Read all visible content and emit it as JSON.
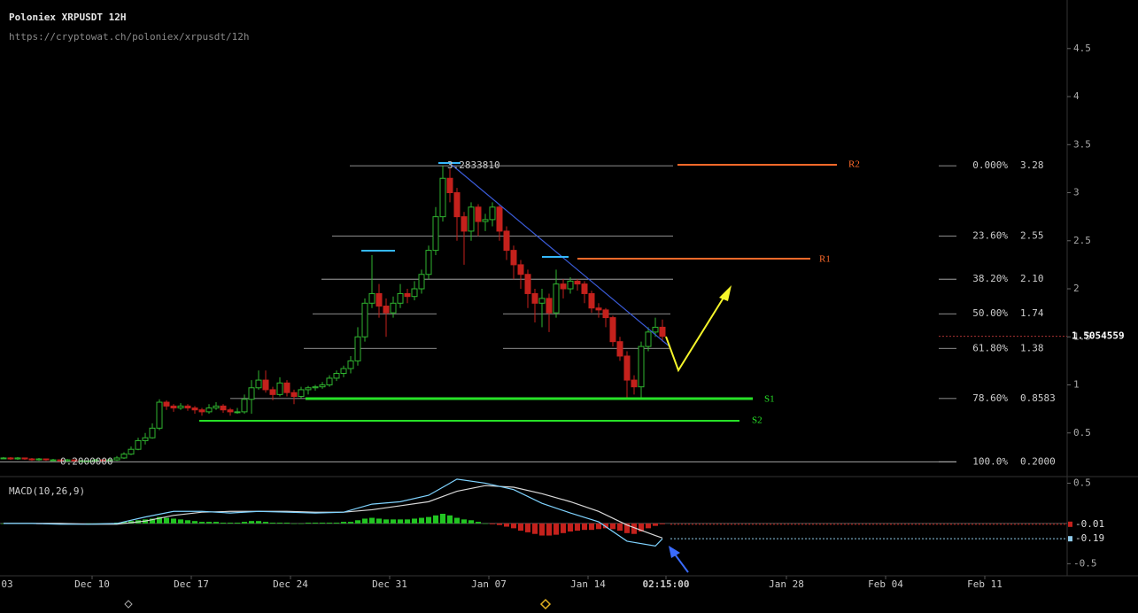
{
  "header": {
    "title": "Poloniex XRPUSDT 12H",
    "url": "https://cryptowat.ch/poloniex/xrpusdt/12h"
  },
  "annotations": {
    "r1": "R1",
    "r2": "R2",
    "s1": "S1",
    "s2": "S2"
  },
  "chart_data": [
    {
      "type": "candlestick",
      "ylim": [
        0,
        5.005
      ],
      "yticks": [
        0.5,
        1,
        1.5,
        2,
        2.5,
        3,
        3.5,
        4,
        4.5
      ],
      "xlim": [
        0.5,
        75.8125
      ],
      "xticks": [
        {
          "value": 0,
          "label": "03"
        },
        {
          "value": 7,
          "label": "Dec 10"
        },
        {
          "value": 14,
          "label": "Dec 17"
        },
        {
          "value": 21,
          "label": "Dec 24"
        },
        {
          "value": 28,
          "label": "Dec 31"
        },
        {
          "value": 35,
          "label": "Jan 07"
        },
        {
          "value": 42,
          "label": "Jan 14"
        },
        {
          "value": 47.5,
          "label": "02:15:00"
        },
        {
          "value": 56,
          "label": "Jan 28"
        },
        {
          "value": 63,
          "label": "Feb 04"
        },
        {
          "value": 70,
          "label": "Feb 11"
        }
      ],
      "up_color": "#2fb52f",
      "down_color": "#c4211c",
      "current_price": 1.5054559,
      "extremes": [
        {
          "value": 3.283381,
          "label": "3.2833810"
        },
        {
          "value": 0.2,
          "label": "0.2000000"
        }
      ],
      "fib": [
        {
          "percent": "0.000%",
          "price": 3.28
        },
        {
          "percent": "23.60%",
          "price": 2.55
        },
        {
          "percent": "38.20%",
          "price": {
            "value": 2.1,
            "label": "2.10"
          }
        },
        {
          "percent": "50.00%",
          "price": 1.74
        },
        {
          "percent": "61.80%",
          "price": 1.38
        },
        {
          "percent": "78.60%",
          "price": 0.8583
        },
        {
          "percent": "100.0%",
          "price": {
            "value": 0.2,
            "label": "0.2000"
          }
        }
      ],
      "candles": [
        [
          0.24,
          0.25,
          0.23,
          0.24
        ],
        [
          0.24,
          0.25,
          0.22,
          0.23
        ],
        [
          0.23,
          0.25,
          0.22,
          0.24
        ],
        [
          0.24,
          0.24,
          0.22,
          0.23
        ],
        [
          0.23,
          0.24,
          0.21,
          0.22
        ],
        [
          0.22,
          0.24,
          0.21,
          0.23
        ],
        [
          0.23,
          0.23,
          0.21,
          0.22
        ],
        [
          0.22,
          0.23,
          0.21,
          0.22
        ],
        [
          0.22,
          0.22,
          0.2,
          0.21
        ],
        [
          0.21,
          0.23,
          0.2,
          0.22
        ],
        [
          0.22,
          0.22,
          0.2,
          0.21
        ],
        [
          0.21,
          0.22,
          0.2,
          0.21
        ],
        [
          0.21,
          0.22,
          0.2,
          0.21
        ],
        [
          0.21,
          0.23,
          0.2,
          0.22
        ],
        [
          0.22,
          0.22,
          0.2,
          0.21
        ],
        [
          0.21,
          0.23,
          0.21,
          0.22
        ],
        [
          0.22,
          0.26,
          0.21,
          0.24
        ],
        [
          0.24,
          0.3,
          0.23,
          0.28
        ],
        [
          0.28,
          0.36,
          0.27,
          0.33
        ],
        [
          0.33,
          0.45,
          0.32,
          0.42
        ],
        [
          0.42,
          0.5,
          0.38,
          0.45
        ],
        [
          0.45,
          0.6,
          0.44,
          0.55
        ],
        [
          0.55,
          0.85,
          0.53,
          0.82
        ],
        [
          0.82,
          0.84,
          0.74,
          0.78
        ],
        [
          0.78,
          0.8,
          0.72,
          0.76
        ],
        [
          0.76,
          0.81,
          0.74,
          0.78
        ],
        [
          0.78,
          0.8,
          0.73,
          0.76
        ],
        [
          0.76,
          0.78,
          0.7,
          0.74
        ],
        [
          0.74,
          0.76,
          0.68,
          0.72
        ],
        [
          0.72,
          0.8,
          0.7,
          0.76
        ],
        [
          0.76,
          0.82,
          0.74,
          0.78
        ],
        [
          0.78,
          0.8,
          0.71,
          0.74
        ],
        [
          0.74,
          0.76,
          0.68,
          0.72
        ],
        [
          0.72,
          0.76,
          0.7,
          0.72
        ],
        [
          0.72,
          0.9,
          0.7,
          0.85
        ],
        [
          0.85,
          1.05,
          0.7,
          0.97
        ],
        [
          0.97,
          1.15,
          0.95,
          1.05
        ],
        [
          1.05,
          1.15,
          0.92,
          0.95
        ],
        [
          0.95,
          0.98,
          0.84,
          0.9
        ],
        [
          0.9,
          1.08,
          0.88,
          1.02
        ],
        [
          1.02,
          1.05,
          0.88,
          0.92
        ],
        [
          0.92,
          0.95,
          0.8,
          0.88
        ],
        [
          0.88,
          0.98,
          0.86,
          0.95
        ],
        [
          0.95,
          0.99,
          0.9,
          0.97
        ],
        [
          0.97,
          1.0,
          0.94,
          0.98
        ],
        [
          0.98,
          1.03,
          0.96,
          1.0
        ],
        [
          1.0,
          1.1,
          0.98,
          1.07
        ],
        [
          1.07,
          1.15,
          1.04,
          1.12
        ],
        [
          1.12,
          1.2,
          1.08,
          1.17
        ],
        [
          1.17,
          1.3,
          1.12,
          1.25
        ],
        [
          1.25,
          1.6,
          1.2,
          1.5
        ],
        [
          1.5,
          1.9,
          1.45,
          1.85
        ],
        [
          1.85,
          2.35,
          1.8,
          1.95
        ],
        [
          1.95,
          2.05,
          1.7,
          1.82
        ],
        [
          1.82,
          1.9,
          1.5,
          1.75
        ],
        [
          1.75,
          1.92,
          1.7,
          1.85
        ],
        [
          1.85,
          2.05,
          1.8,
          1.95
        ],
        [
          1.95,
          2.0,
          1.85,
          1.92
        ],
        [
          1.92,
          2.08,
          1.88,
          2.0
        ],
        [
          2.0,
          2.2,
          1.95,
          2.15
        ],
        [
          2.15,
          2.45,
          2.1,
          2.4
        ],
        [
          2.4,
          2.85,
          2.35,
          2.75
        ],
        [
          2.75,
          3.28,
          2.7,
          3.15
        ],
        [
          3.15,
          3.25,
          2.9,
          3.0
        ],
        [
          3.0,
          3.05,
          2.5,
          2.75
        ],
        [
          2.75,
          2.8,
          2.25,
          2.6
        ],
        [
          2.6,
          2.9,
          2.5,
          2.85
        ],
        [
          2.85,
          2.88,
          2.55,
          2.7
        ],
        [
          2.7,
          2.78,
          2.6,
          2.72
        ],
        [
          2.72,
          2.9,
          2.65,
          2.85
        ],
        [
          2.85,
          2.88,
          2.5,
          2.6
        ],
        [
          2.6,
          2.65,
          2.3,
          2.4
        ],
        [
          2.4,
          2.45,
          2.1,
          2.25
        ],
        [
          2.25,
          2.3,
          2.0,
          2.15
        ],
        [
          2.15,
          2.2,
          1.8,
          1.95
        ],
        [
          1.95,
          2.0,
          1.65,
          1.85
        ],
        [
          1.85,
          2.0,
          1.6,
          1.9
        ],
        [
          1.9,
          1.95,
          1.55,
          1.75
        ],
        [
          1.75,
          2.2,
          1.7,
          2.05
        ],
        [
          2.05,
          2.1,
          1.9,
          2.0
        ],
        [
          2.0,
          2.12,
          1.95,
          2.08
        ],
        [
          2.08,
          2.1,
          1.98,
          2.05
        ],
        [
          2.05,
          2.08,
          1.85,
          1.95
        ],
        [
          1.95,
          1.98,
          1.75,
          1.8
        ],
        [
          1.8,
          1.85,
          1.7,
          1.78
        ],
        [
          1.78,
          1.8,
          1.6,
          1.7
        ],
        [
          1.7,
          1.72,
          1.4,
          1.45
        ],
        [
          1.45,
          1.5,
          1.25,
          1.3
        ],
        [
          1.3,
          1.35,
          0.86,
          1.05
        ],
        [
          1.05,
          1.1,
          0.9,
          0.98
        ],
        [
          0.98,
          1.45,
          0.86,
          1.4
        ],
        [
          1.4,
          1.6,
          1.35,
          1.55
        ],
        [
          1.55,
          1.7,
          1.5,
          1.6
        ],
        [
          1.6,
          1.68,
          1.45,
          1.5054559
        ]
      ]
    },
    {
      "type": "macd",
      "title": "MACD(10,26,9)",
      "ylim": [
        -0.65,
        0.56
      ],
      "yticks": [
        0.5,
        -0.5
      ],
      "markers": [
        -0.01,
        -0.19
      ],
      "x": [
        0,
        4,
        8,
        12,
        16,
        20,
        24,
        28,
        32,
        36,
        40,
        44,
        48,
        52,
        56,
        60,
        64,
        68,
        72,
        76,
        80,
        84,
        88,
        92,
        93
      ],
      "macd": {
        "color": "#7fd3ff",
        "values": [
          0,
          0,
          -0.01,
          -0.01,
          0,
          0.08,
          0.15,
          0.15,
          0.13,
          0.15,
          0.14,
          0.13,
          0.14,
          0.24,
          0.27,
          0.35,
          0.55,
          0.5,
          0.42,
          0.25,
          0.13,
          0.02,
          -0.22,
          -0.28,
          -0.19
        ]
      },
      "signal": {
        "color": "#d8d8d8",
        "values": [
          0,
          0,
          0,
          -0.01,
          -0.01,
          0.03,
          0.1,
          0.14,
          0.15,
          0.15,
          0.15,
          0.14,
          0.14,
          0.17,
          0.22,
          0.27,
          0.4,
          0.47,
          0.45,
          0.37,
          0.27,
          0.15,
          -0.02,
          -0.15,
          -0.18
        ]
      },
      "histogram": [
        0,
        0,
        0,
        0,
        0,
        -0.01,
        -0.01,
        -0.01,
        -0.01,
        -0.01,
        -0.01,
        -0.01,
        0,
        0,
        0,
        0,
        0.01,
        0.02,
        0.03,
        0.04,
        0.05,
        0.06,
        0.08,
        0.07,
        0.06,
        0.05,
        0.04,
        0.03,
        0.02,
        0.02,
        0.02,
        0.01,
        0.01,
        0.01,
        0.02,
        0.03,
        0.03,
        0.02,
        0.01,
        0.01,
        0.01,
        0,
        0,
        0.01,
        0.01,
        0.01,
        0.01,
        0.01,
        0.02,
        0.02,
        0.04,
        0.06,
        0.07,
        0.06,
        0.05,
        0.05,
        0.05,
        0.05,
        0.06,
        0.07,
        0.08,
        0.1,
        0.12,
        0.1,
        0.07,
        0.05,
        0.04,
        0.02,
        0,
        -0.01,
        -0.02,
        -0.04,
        -0.06,
        -0.09,
        -0.11,
        -0.13,
        -0.15,
        -0.15,
        -0.14,
        -0.12,
        -0.1,
        -0.09,
        -0.08,
        -0.08,
        -0.07,
        -0.06,
        -0.07,
        -0.09,
        -0.12,
        -0.13,
        -0.1,
        -0.06,
        -0.03,
        -0.01
      ]
    }
  ]
}
